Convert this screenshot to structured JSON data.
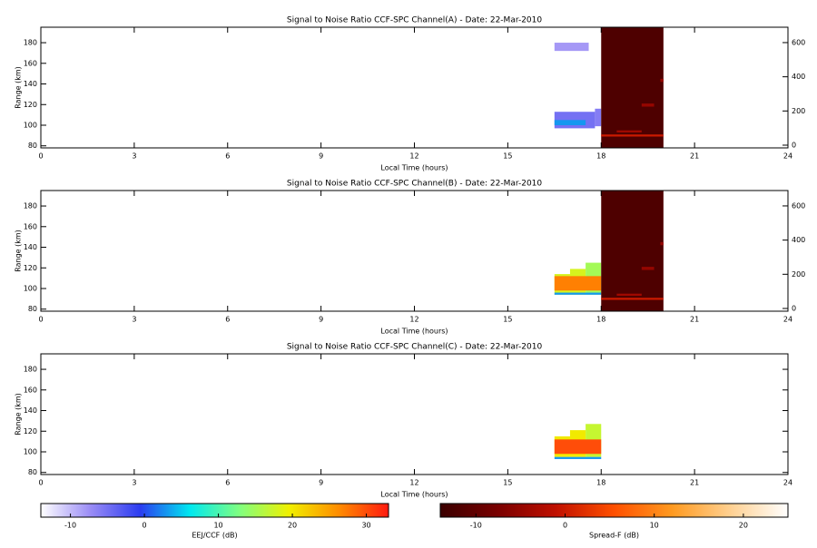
{
  "chart_data": [
    {
      "type": "heatmap",
      "title": "Signal to Noise Ratio CCF-SPC Channel(A) - Date: 22-Mar-2010",
      "xlabel": "Local Time (hours)",
      "ylabel": "Range (km)",
      "xlim": [
        0,
        24
      ],
      "xticks": [
        0,
        3,
        6,
        9,
        12,
        15,
        18,
        21,
        24
      ],
      "ylim": [
        78,
        195
      ],
      "yticks": [
        80,
        100,
        120,
        140,
        160,
        180
      ],
      "y2lim": [
        -16,
        690
      ],
      "y2ticks": [
        0,
        200,
        400,
        600
      ],
      "cells": [
        {
          "t": [
            16.5,
            17.6
          ],
          "r": [
            172,
            180
          ],
          "db": -8
        },
        {
          "t": [
            16.5,
            17.8
          ],
          "r": [
            97,
            113
          ],
          "db": -5
        },
        {
          "t": [
            17.8,
            18.0
          ],
          "r": [
            99,
            116
          ],
          "db": -6
        },
        {
          "t": [
            16.5,
            17.5
          ],
          "r": [
            100,
            105
          ],
          "db": 3
        }
      ],
      "spread_f_cells": [
        {
          "t": [
            18,
            20
          ],
          "r": [
            78,
            195
          ],
          "db": -12
        },
        {
          "t": [
            18,
            20
          ],
          "r": [
            89,
            91
          ],
          "db": 0
        },
        {
          "t": [
            18.5,
            19.3
          ],
          "r": [
            93,
            95
          ],
          "db": -4
        },
        {
          "t": [
            19.3,
            19.7
          ],
          "r": [
            118,
            121
          ],
          "db": -5
        },
        {
          "t": [
            19.9,
            20
          ],
          "r": [
            142,
            145
          ],
          "db": -5
        }
      ]
    },
    {
      "type": "heatmap",
      "title": "Signal to Noise Ratio CCF-SPC Channel(B) - Date: 22-Mar-2010",
      "xlabel": "Local Time (hours)",
      "ylabel": "Range (km)",
      "xlim": [
        0,
        24
      ],
      "xticks": [
        0,
        3,
        6,
        9,
        12,
        15,
        18,
        21,
        24
      ],
      "ylim": [
        78,
        195
      ],
      "yticks": [
        80,
        100,
        120,
        140,
        160,
        180
      ],
      "y2lim": [
        -16,
        690
      ],
      "y2ticks": [
        0,
        200,
        400,
        600
      ],
      "cells": [
        {
          "t": [
            16.5,
            17.0
          ],
          "r": [
            94,
            114
          ],
          "db": 18
        },
        {
          "t": [
            17.0,
            17.5
          ],
          "r": [
            94,
            119
          ],
          "db": 18
        },
        {
          "t": [
            17.5,
            18.0
          ],
          "r": [
            94,
            125
          ],
          "db": 15
        },
        {
          "t": [
            16.5,
            18.0
          ],
          "r": [
            98,
            112
          ],
          "db": 27
        },
        {
          "t": [
            16.5,
            18.0
          ],
          "r": [
            94,
            96
          ],
          "db": 3
        }
      ],
      "spread_f_cells": [
        {
          "t": [
            18,
            20
          ],
          "r": [
            78,
            195
          ],
          "db": -12
        },
        {
          "t": [
            18,
            20
          ],
          "r": [
            89,
            91
          ],
          "db": 0
        },
        {
          "t": [
            18.5,
            19.3
          ],
          "r": [
            93,
            95
          ],
          "db": -4
        },
        {
          "t": [
            19.3,
            19.7
          ],
          "r": [
            118,
            121
          ],
          "db": -5
        },
        {
          "t": [
            19.9,
            20
          ],
          "r": [
            142,
            145
          ],
          "db": -5
        }
      ]
    },
    {
      "type": "heatmap",
      "title": "Signal to Noise Ratio CCF-SPC Channel(C) - Date: 22-Mar-2010",
      "xlabel": "Local Time (hours)",
      "ylabel": "Range (km)",
      "xlim": [
        0,
        24
      ],
      "xticks": [
        0,
        3,
        6,
        9,
        12,
        15,
        18,
        21,
        24
      ],
      "ylim": [
        78,
        195
      ],
      "yticks": [
        80,
        100,
        120,
        140,
        160,
        180
      ],
      "cells": [
        {
          "t": [
            16.5,
            17.0
          ],
          "r": [
            95,
            115
          ],
          "db": 20
        },
        {
          "t": [
            17.0,
            17.5
          ],
          "r": [
            95,
            121
          ],
          "db": 20
        },
        {
          "t": [
            17.5,
            18.0
          ],
          "r": [
            95,
            127
          ],
          "db": 17
        },
        {
          "t": [
            16.5,
            18.0
          ],
          "r": [
            98,
            112
          ],
          "db": 30
        },
        {
          "t": [
            16.5,
            18.0
          ],
          "r": [
            93,
            95
          ],
          "db": 3
        }
      ]
    }
  ],
  "colorbars": [
    {
      "label": "EEJ/CCF (dB)",
      "lim": [
        -14,
        33
      ],
      "ticks": [
        -10,
        0,
        10,
        20,
        30
      ],
      "colors": [
        "#ffffff",
        "#9a8cf5",
        "#2b3cf0",
        "#00e8f0",
        "#80ff80",
        "#f0f000",
        "#ff8c00",
        "#ff1a10"
      ]
    },
    {
      "label": "Spread-F (dB)",
      "lim": [
        -14,
        25
      ],
      "ticks": [
        -10,
        0,
        10,
        20
      ],
      "colors": [
        "#3a0000",
        "#7a0000",
        "#c01000",
        "#ff5000",
        "#ff9a20",
        "#ffd090",
        "#ffffff"
      ]
    }
  ]
}
